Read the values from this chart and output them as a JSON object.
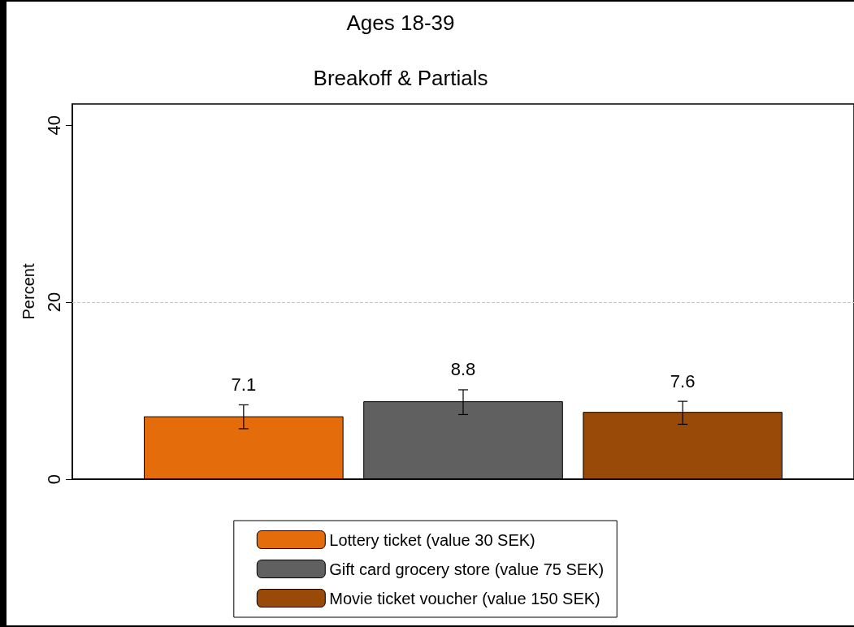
{
  "chart_data": {
    "type": "bar",
    "title": "Ages 18-39",
    "subtitle": "Breakoff & Partials",
    "ylabel": "Percent",
    "categories": [
      null
    ],
    "series": [
      {
        "name": "Lottery ticket (value 30 SEK)",
        "color": "#e46c0b",
        "values": [
          7.1
        ],
        "errors": [
          [
            5.7,
            8.4
          ]
        ]
      },
      {
        "name": "Gift card grocery store (value 75 SEK)",
        "color": "#606060",
        "values": [
          8.8
        ],
        "errors": [
          [
            7.3,
            10.1
          ]
        ]
      },
      {
        "name": "Movie ticket voucher (value 150 SEK)",
        "color": "#9a4a08",
        "values": [
          7.6
        ],
        "errors": [
          [
            6.2,
            8.8
          ]
        ]
      }
    ],
    "ylim": [
      0,
      42.4
    ],
    "yticks": [
      0,
      20,
      40
    ],
    "ref_lines": [
      {
        "axis": "y",
        "value": 20,
        "color": "#c8c8c8",
        "line_style": "dashed"
      }
    ],
    "data_labels": true,
    "legend": "bottom",
    "grid": false
  }
}
